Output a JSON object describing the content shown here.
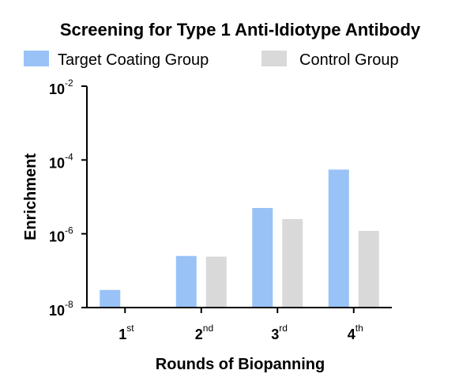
{
  "chart_data": {
    "type": "bar",
    "title": "Screening for Type 1 Anti-Idiotype Antibody",
    "xlabel": "Rounds of Biopanning",
    "ylabel": "Enrichment",
    "yscale": "log",
    "ylim": [
      1e-08,
      0.01
    ],
    "yticks": [
      {
        "base": "10",
        "exp": "-8",
        "value": 1e-08
      },
      {
        "base": "10",
        "exp": "-6",
        "value": 1e-06
      },
      {
        "base": "10",
        "exp": "-4",
        "value": 0.0001
      },
      {
        "base": "10",
        "exp": "-2",
        "value": 0.01
      }
    ],
    "categories": [
      {
        "base": "1",
        "sup": "st"
      },
      {
        "base": "2",
        "sup": "nd"
      },
      {
        "base": "3",
        "sup": "rd"
      },
      {
        "base": "4",
        "sup": "th"
      }
    ],
    "series": [
      {
        "name": "Target Coating Group",
        "color": "#99c2f7",
        "values": [
          3e-08,
          2.5e-07,
          5e-06,
          5.5e-05
        ]
      },
      {
        "name": "Control Group",
        "color": "#d9d9d9",
        "values": [
          null,
          2.4e-07,
          2.5e-06,
          1.2e-06
        ]
      }
    ],
    "legend_position": "top",
    "grid": false
  }
}
